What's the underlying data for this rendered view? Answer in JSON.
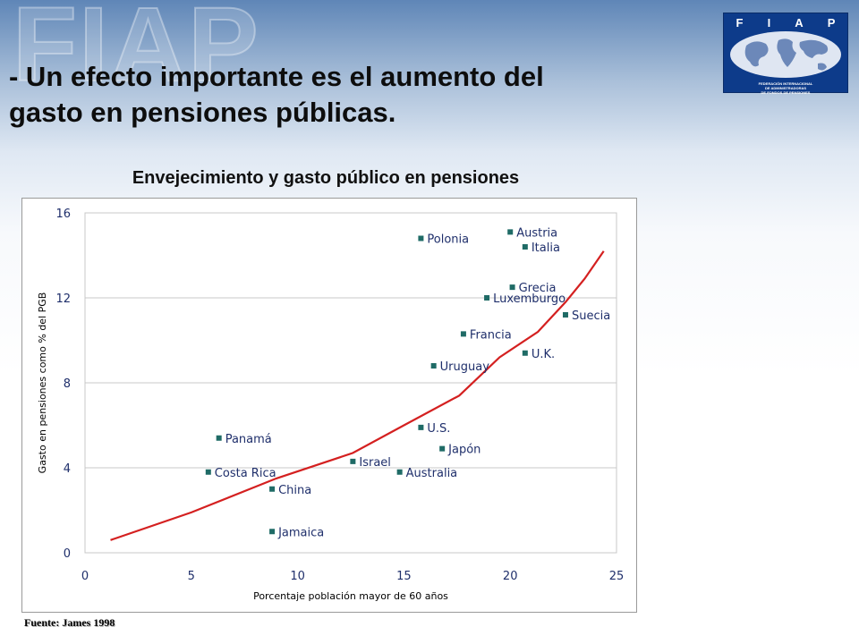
{
  "background_text": "FIAP",
  "headline": {
    "line1": "- Un efecto importante es el aumento del",
    "line2": "gasto  en pensiones públicas."
  },
  "logo": {
    "letters": [
      "F",
      "I",
      "A",
      "P"
    ],
    "caption_line1": "FEDERACIÓN INTERNACIONAL",
    "caption_line2": "DE ADMINISTRADORAS",
    "caption_line3": "DE FONDOS DE PENSIONES",
    "colors": {
      "background": "#0d3b8a",
      "globe": "#dfe6f2"
    }
  },
  "source": "Fuente: James 1998",
  "chart_data": {
    "type": "scatter",
    "title": "Envejecimiento y gasto público en pensiones",
    "xlabel": "Porcentaje población mayor de 60 años",
    "ylabel": "Gasto en pensiones como % del PGB",
    "xlim": [
      0,
      25
    ],
    "ylim": [
      0,
      16
    ],
    "x_ticks": [
      0,
      5,
      10,
      15,
      20,
      25
    ],
    "y_ticks": [
      0,
      4,
      8,
      12,
      16
    ],
    "grid": "horizontal",
    "colors": {
      "points": "#1f6b66",
      "trend": "#d42020",
      "grid": "#c8c8c8"
    },
    "points": [
      {
        "label": "Polonia",
        "x": 15.8,
        "y": 14.8
      },
      {
        "label": "Austria",
        "x": 20.0,
        "y": 15.1
      },
      {
        "label": "Italia",
        "x": 20.7,
        "y": 14.4
      },
      {
        "label": "Grecia",
        "x": 20.1,
        "y": 12.5
      },
      {
        "label": "Luxemburgo",
        "x": 18.9,
        "y": 12.0
      },
      {
        "label": "Suecia",
        "x": 22.6,
        "y": 11.2
      },
      {
        "label": "Francia",
        "x": 17.8,
        "y": 10.3
      },
      {
        "label": "U.K.",
        "x": 20.7,
        "y": 9.4
      },
      {
        "label": "Uruguay",
        "x": 16.4,
        "y": 8.8
      },
      {
        "label": "U.S.",
        "x": 15.8,
        "y": 5.9
      },
      {
        "label": "Panamá",
        "x": 6.3,
        "y": 5.4
      },
      {
        "label": "Japón",
        "x": 16.8,
        "y": 4.9
      },
      {
        "label": "Israel",
        "x": 12.6,
        "y": 4.3
      },
      {
        "label": "Australia",
        "x": 14.8,
        "y": 3.8
      },
      {
        "label": "Costa Rica",
        "x": 5.8,
        "y": 3.8
      },
      {
        "label": "China",
        "x": 8.8,
        "y": 3.0
      },
      {
        "label": "Jamaica",
        "x": 8.8,
        "y": 1.0
      }
    ],
    "trend_line": [
      {
        "x": 1.2,
        "y": 0.6
      },
      {
        "x": 5.0,
        "y": 1.9
      },
      {
        "x": 9.0,
        "y": 3.5
      },
      {
        "x": 12.6,
        "y": 4.7
      },
      {
        "x": 15.0,
        "y": 6.0
      },
      {
        "x": 17.6,
        "y": 7.4
      },
      {
        "x": 19.5,
        "y": 9.2
      },
      {
        "x": 21.3,
        "y": 10.4
      },
      {
        "x": 22.6,
        "y": 11.8
      },
      {
        "x": 23.5,
        "y": 12.9
      },
      {
        "x": 24.4,
        "y": 14.2
      }
    ]
  }
}
